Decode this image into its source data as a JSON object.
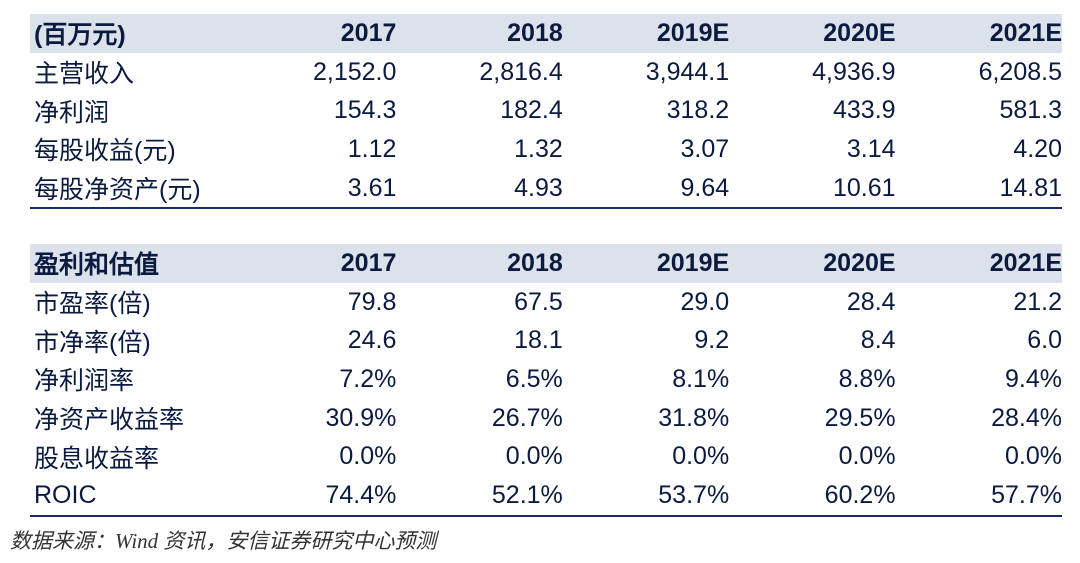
{
  "table1": {
    "header": [
      "(百万元)",
      "2017",
      "2018",
      "2019E",
      "2020E",
      "2021E"
    ],
    "rows": [
      [
        "主营收入",
        "2,152.0",
        "2,816.4",
        "3,944.1",
        "4,936.9",
        "6,208.5"
      ],
      [
        "净利润",
        "154.3",
        "182.4",
        "318.2",
        "433.9",
        "581.3"
      ],
      [
        "每股收益(元)",
        "1.12",
        "1.32",
        "3.07",
        "3.14",
        "4.20"
      ],
      [
        "每股净资产(元)",
        "3.61",
        "4.93",
        "9.64",
        "10.61",
        "14.81"
      ]
    ]
  },
  "table2": {
    "header": [
      "盈利和估值",
      "2017",
      "2018",
      "2019E",
      "2020E",
      "2021E"
    ],
    "rows": [
      [
        "市盈率(倍)",
        "79.8",
        "67.5",
        "29.0",
        "28.4",
        "21.2"
      ],
      [
        "市净率(倍)",
        "24.6",
        "18.1",
        "9.2",
        "8.4",
        "6.0"
      ],
      [
        "净利润率",
        "7.2%",
        "6.5%",
        "8.1%",
        "8.8%",
        "9.4%"
      ],
      [
        "净资产收益率",
        "30.9%",
        "26.7%",
        "31.8%",
        "29.5%",
        "28.4%"
      ],
      [
        "股息收益率",
        "0.0%",
        "0.0%",
        "0.0%",
        "0.0%",
        "0.0%"
      ],
      [
        "ROIC",
        "74.4%",
        "52.1%",
        "53.7%",
        "60.2%",
        "57.7%"
      ]
    ]
  },
  "source": "数据来源：Wind 资讯，安信证券研究中心预测",
  "colors": {
    "header_bg": "#dce2ec",
    "text": "#0b1a3f",
    "rule": "#1a2a66"
  }
}
